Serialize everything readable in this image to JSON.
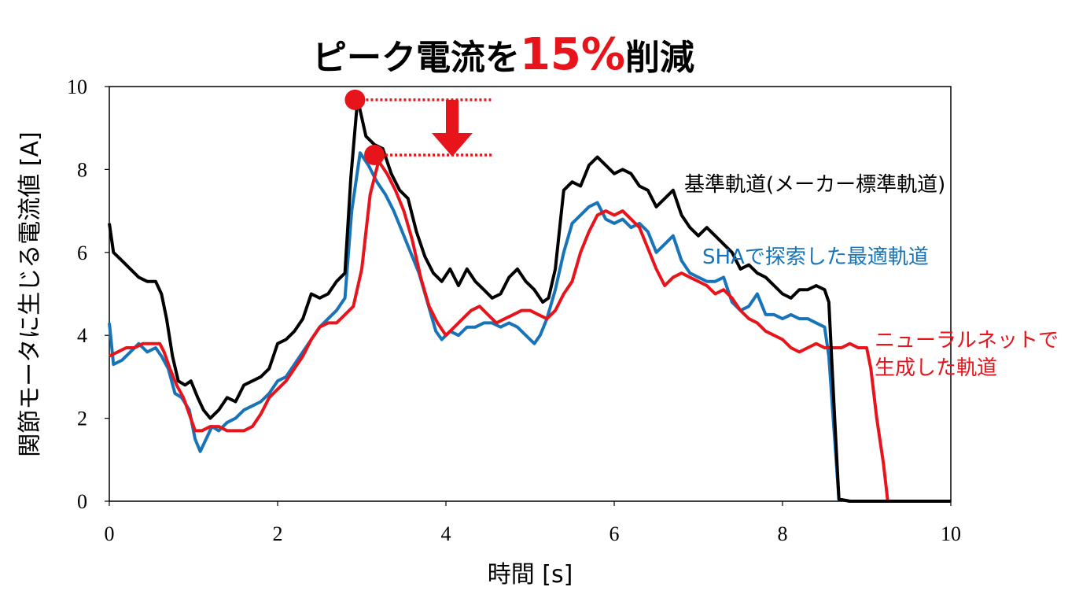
{
  "title": {
    "part1": "ピーク電流を",
    "accent": "15%",
    "part2": "削減",
    "accent_color": "#e8141c"
  },
  "annotation_color": "#e8141c",
  "chart_data": {
    "type": "line",
    "xlabel": "時間 [s]",
    "ylabel": "関節モータに生じる電流値 [A]",
    "xlim": [
      0,
      10
    ],
    "ylim": [
      0,
      10
    ],
    "xticks": [
      0,
      2,
      4,
      6,
      8,
      10
    ],
    "yticks": [
      0,
      2,
      4,
      6,
      8,
      10
    ],
    "grid": false,
    "series": [
      {
        "name": "基準軌道(メーカー標準軌道)",
        "label_lines": [
          "基準軌道(メーカー標準軌道)"
        ],
        "color": "#000000",
        "points": [
          [
            0,
            6.7
          ],
          [
            0.05,
            6.0
          ],
          [
            0.15,
            5.8
          ],
          [
            0.25,
            5.6
          ],
          [
            0.35,
            5.4
          ],
          [
            0.45,
            5.3
          ],
          [
            0.55,
            5.3
          ],
          [
            0.62,
            5.0
          ],
          [
            0.68,
            4.4
          ],
          [
            0.75,
            3.5
          ],
          [
            0.82,
            2.9
          ],
          [
            0.9,
            2.8
          ],
          [
            0.97,
            2.9
          ],
          [
            1.05,
            2.5
          ],
          [
            1.12,
            2.2
          ],
          [
            1.2,
            2.0
          ],
          [
            1.3,
            2.2
          ],
          [
            1.4,
            2.5
          ],
          [
            1.5,
            2.4
          ],
          [
            1.6,
            2.8
          ],
          [
            1.7,
            2.9
          ],
          [
            1.8,
            3.0
          ],
          [
            1.9,
            3.2
          ],
          [
            2.0,
            3.8
          ],
          [
            2.1,
            3.9
          ],
          [
            2.2,
            4.1
          ],
          [
            2.3,
            4.4
          ],
          [
            2.4,
            5.0
          ],
          [
            2.5,
            4.9
          ],
          [
            2.6,
            5.0
          ],
          [
            2.7,
            5.3
          ],
          [
            2.8,
            5.5
          ],
          [
            2.87,
            7.8
          ],
          [
            2.95,
            9.7
          ],
          [
            3.05,
            8.8
          ],
          [
            3.15,
            8.6
          ],
          [
            3.25,
            8.5
          ],
          [
            3.35,
            7.9
          ],
          [
            3.45,
            7.5
          ],
          [
            3.55,
            7.3
          ],
          [
            3.65,
            6.5
          ],
          [
            3.75,
            5.9
          ],
          [
            3.85,
            5.5
          ],
          [
            3.95,
            5.3
          ],
          [
            4.05,
            5.6
          ],
          [
            4.15,
            5.2
          ],
          [
            4.25,
            5.6
          ],
          [
            4.35,
            5.3
          ],
          [
            4.45,
            5.1
          ],
          [
            4.55,
            4.9
          ],
          [
            4.65,
            5.0
          ],
          [
            4.75,
            5.4
          ],
          [
            4.85,
            5.6
          ],
          [
            4.95,
            5.3
          ],
          [
            5.05,
            5.1
          ],
          [
            5.15,
            4.8
          ],
          [
            5.22,
            4.9
          ],
          [
            5.3,
            5.6
          ],
          [
            5.4,
            7.5
          ],
          [
            5.5,
            7.7
          ],
          [
            5.6,
            7.6
          ],
          [
            5.7,
            8.1
          ],
          [
            5.8,
            8.3
          ],
          [
            5.9,
            8.1
          ],
          [
            6.0,
            7.9
          ],
          [
            6.1,
            8.0
          ],
          [
            6.2,
            7.9
          ],
          [
            6.3,
            7.6
          ],
          [
            6.4,
            7.5
          ],
          [
            6.5,
            7.1
          ],
          [
            6.6,
            7.3
          ],
          [
            6.7,
            7.5
          ],
          [
            6.8,
            6.9
          ],
          [
            6.9,
            6.6
          ],
          [
            7.0,
            6.4
          ],
          [
            7.1,
            6.6
          ],
          [
            7.2,
            6.4
          ],
          [
            7.3,
            6.2
          ],
          [
            7.4,
            6.0
          ],
          [
            7.5,
            5.6
          ],
          [
            7.6,
            5.7
          ],
          [
            7.7,
            5.5
          ],
          [
            7.8,
            5.4
          ],
          [
            7.9,
            5.2
          ],
          [
            8.0,
            5.0
          ],
          [
            8.1,
            4.9
          ],
          [
            8.2,
            5.1
          ],
          [
            8.3,
            5.1
          ],
          [
            8.4,
            5.2
          ],
          [
            8.5,
            5.1
          ],
          [
            8.55,
            4.8
          ],
          [
            8.62,
            2.0
          ],
          [
            8.67,
            0.05
          ],
          [
            8.8,
            0.0
          ],
          [
            10,
            0.0
          ]
        ]
      },
      {
        "name": "SHAで探索した最適軌道",
        "label_lines": [
          "SHAで探索した最適軌道"
        ],
        "color": "#1874b8",
        "points": [
          [
            0,
            4.3
          ],
          [
            0.05,
            3.3
          ],
          [
            0.15,
            3.4
          ],
          [
            0.25,
            3.6
          ],
          [
            0.35,
            3.8
          ],
          [
            0.45,
            3.6
          ],
          [
            0.55,
            3.7
          ],
          [
            0.62,
            3.5
          ],
          [
            0.7,
            3.2
          ],
          [
            0.78,
            2.6
          ],
          [
            0.86,
            2.5
          ],
          [
            0.95,
            2.2
          ],
          [
            1.02,
            1.5
          ],
          [
            1.08,
            1.2
          ],
          [
            1.15,
            1.5
          ],
          [
            1.22,
            1.8
          ],
          [
            1.3,
            1.7
          ],
          [
            1.4,
            1.9
          ],
          [
            1.5,
            2.0
          ],
          [
            1.6,
            2.2
          ],
          [
            1.7,
            2.3
          ],
          [
            1.8,
            2.4
          ],
          [
            1.9,
            2.6
          ],
          [
            2.0,
            2.9
          ],
          [
            2.1,
            3.0
          ],
          [
            2.2,
            3.3
          ],
          [
            2.3,
            3.6
          ],
          [
            2.4,
            3.9
          ],
          [
            2.5,
            4.2
          ],
          [
            2.6,
            4.4
          ],
          [
            2.7,
            4.6
          ],
          [
            2.8,
            4.9
          ],
          [
            2.88,
            7.0
          ],
          [
            2.98,
            8.4
          ],
          [
            3.08,
            8.1
          ],
          [
            3.18,
            7.7
          ],
          [
            3.28,
            7.4
          ],
          [
            3.38,
            7.0
          ],
          [
            3.48,
            6.5
          ],
          [
            3.58,
            6.0
          ],
          [
            3.68,
            5.5
          ],
          [
            3.78,
            4.8
          ],
          [
            3.88,
            4.1
          ],
          [
            3.95,
            3.9
          ],
          [
            4.05,
            4.1
          ],
          [
            4.15,
            4.0
          ],
          [
            4.25,
            4.2
          ],
          [
            4.35,
            4.2
          ],
          [
            4.45,
            4.3
          ],
          [
            4.55,
            4.3
          ],
          [
            4.65,
            4.2
          ],
          [
            4.75,
            4.3
          ],
          [
            4.85,
            4.2
          ],
          [
            4.95,
            4.0
          ],
          [
            5.05,
            3.8
          ],
          [
            5.12,
            4.0
          ],
          [
            5.2,
            4.4
          ],
          [
            5.3,
            5.1
          ],
          [
            5.4,
            6.0
          ],
          [
            5.5,
            6.7
          ],
          [
            5.6,
            6.9
          ],
          [
            5.7,
            7.1
          ],
          [
            5.8,
            7.2
          ],
          [
            5.9,
            6.8
          ],
          [
            6.0,
            6.7
          ],
          [
            6.1,
            6.8
          ],
          [
            6.2,
            6.6
          ],
          [
            6.3,
            6.7
          ],
          [
            6.4,
            6.5
          ],
          [
            6.5,
            6.0
          ],
          [
            6.6,
            6.2
          ],
          [
            6.7,
            6.4
          ],
          [
            6.8,
            5.8
          ],
          [
            6.9,
            5.5
          ],
          [
            7.0,
            5.4
          ],
          [
            7.1,
            5.3
          ],
          [
            7.2,
            5.3
          ],
          [
            7.3,
            5.4
          ],
          [
            7.4,
            4.8
          ],
          [
            7.5,
            4.6
          ],
          [
            7.6,
            4.7
          ],
          [
            7.7,
            5.0
          ],
          [
            7.8,
            4.5
          ],
          [
            7.9,
            4.5
          ],
          [
            8.0,
            4.4
          ],
          [
            8.1,
            4.5
          ],
          [
            8.2,
            4.4
          ],
          [
            8.3,
            4.4
          ],
          [
            8.4,
            4.3
          ],
          [
            8.5,
            4.2
          ],
          [
            8.55,
            3.5
          ],
          [
            8.62,
            1.5
          ],
          [
            8.67,
            0.05
          ],
          [
            8.8,
            0.0
          ],
          [
            10,
            0.0
          ]
        ]
      },
      {
        "name": "ニューラルネットで生成した軌道",
        "label_lines": [
          "ニューラルネットで",
          "生成した軌道"
        ],
        "color": "#e8141c",
        "points": [
          [
            0,
            3.5
          ],
          [
            0.1,
            3.6
          ],
          [
            0.2,
            3.7
          ],
          [
            0.3,
            3.7
          ],
          [
            0.4,
            3.8
          ],
          [
            0.5,
            3.8
          ],
          [
            0.6,
            3.8
          ],
          [
            0.65,
            3.6
          ],
          [
            0.72,
            3.2
          ],
          [
            0.8,
            2.8
          ],
          [
            0.88,
            2.5
          ],
          [
            0.95,
            2.1
          ],
          [
            1.02,
            1.7
          ],
          [
            1.1,
            1.7
          ],
          [
            1.2,
            1.8
          ],
          [
            1.3,
            1.8
          ],
          [
            1.4,
            1.7
          ],
          [
            1.5,
            1.7
          ],
          [
            1.6,
            1.7
          ],
          [
            1.7,
            1.8
          ],
          [
            1.8,
            2.1
          ],
          [
            1.9,
            2.5
          ],
          [
            2.0,
            2.7
          ],
          [
            2.1,
            2.9
          ],
          [
            2.2,
            3.2
          ],
          [
            2.3,
            3.5
          ],
          [
            2.4,
            3.9
          ],
          [
            2.5,
            4.2
          ],
          [
            2.6,
            4.3
          ],
          [
            2.7,
            4.3
          ],
          [
            2.8,
            4.5
          ],
          [
            2.9,
            4.7
          ],
          [
            3.0,
            5.6
          ],
          [
            3.1,
            7.4
          ],
          [
            3.2,
            8.2
          ],
          [
            3.3,
            7.9
          ],
          [
            3.4,
            7.5
          ],
          [
            3.5,
            7.0
          ],
          [
            3.6,
            6.3
          ],
          [
            3.7,
            5.4
          ],
          [
            3.8,
            4.7
          ],
          [
            3.9,
            4.3
          ],
          [
            4.0,
            4.0
          ],
          [
            4.1,
            4.2
          ],
          [
            4.2,
            4.4
          ],
          [
            4.3,
            4.6
          ],
          [
            4.4,
            4.7
          ],
          [
            4.5,
            4.5
          ],
          [
            4.6,
            4.3
          ],
          [
            4.7,
            4.4
          ],
          [
            4.8,
            4.5
          ],
          [
            4.9,
            4.6
          ],
          [
            5.0,
            4.6
          ],
          [
            5.1,
            4.5
          ],
          [
            5.2,
            4.4
          ],
          [
            5.3,
            4.6
          ],
          [
            5.4,
            5.0
          ],
          [
            5.5,
            5.3
          ],
          [
            5.6,
            6.0
          ],
          [
            5.7,
            6.5
          ],
          [
            5.8,
            6.9
          ],
          [
            5.9,
            7.0
          ],
          [
            6.0,
            6.9
          ],
          [
            6.1,
            7.0
          ],
          [
            6.2,
            6.8
          ],
          [
            6.3,
            6.6
          ],
          [
            6.4,
            6.1
          ],
          [
            6.5,
            5.6
          ],
          [
            6.6,
            5.2
          ],
          [
            6.7,
            5.4
          ],
          [
            6.8,
            5.5
          ],
          [
            6.9,
            5.4
          ],
          [
            7.0,
            5.3
          ],
          [
            7.1,
            5.2
          ],
          [
            7.2,
            5.0
          ],
          [
            7.3,
            5.1
          ],
          [
            7.4,
            4.9
          ],
          [
            7.5,
            4.6
          ],
          [
            7.6,
            4.4
          ],
          [
            7.7,
            4.3
          ],
          [
            7.8,
            4.1
          ],
          [
            7.9,
            4.0
          ],
          [
            8.0,
            3.9
          ],
          [
            8.1,
            3.7
          ],
          [
            8.2,
            3.6
          ],
          [
            8.3,
            3.7
          ],
          [
            8.4,
            3.8
          ],
          [
            8.5,
            3.7
          ],
          [
            8.6,
            3.7
          ],
          [
            8.7,
            3.7
          ],
          [
            8.8,
            3.8
          ],
          [
            8.9,
            3.7
          ],
          [
            9.0,
            3.7
          ],
          [
            9.05,
            3.2
          ],
          [
            9.12,
            2.0
          ],
          [
            9.2,
            0.9
          ],
          [
            9.25,
            0.0
          ],
          [
            10,
            0.0
          ]
        ]
      }
    ],
    "peak_markers": [
      {
        "series": "基準軌道(メーカー標準軌道)",
        "x": 2.92,
        "y": 9.68
      },
      {
        "series": "ニューラルネットで生成した軌道",
        "x": 3.15,
        "y": 8.35
      }
    ]
  }
}
